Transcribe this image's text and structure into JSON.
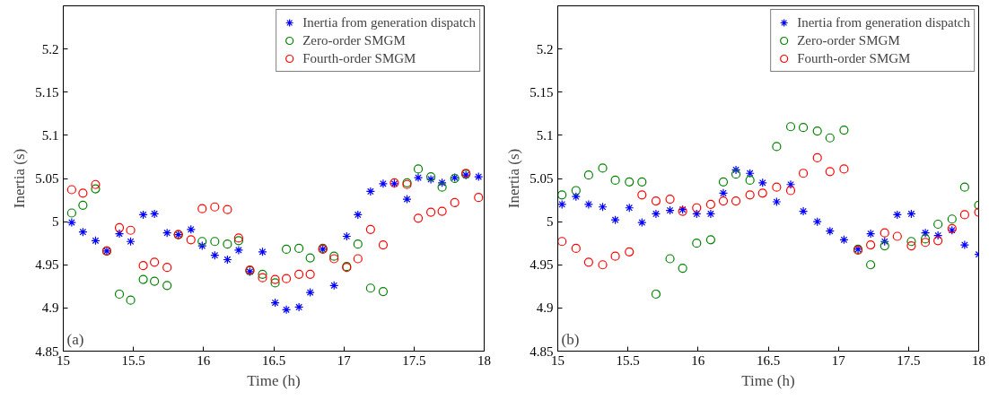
{
  "chart_data": [
    {
      "type": "scatter",
      "xlabel": "Time (h)",
      "ylabel": "Inertia (s)",
      "annotations": [
        "(a)"
      ],
      "xlim": [
        15,
        18
      ],
      "ylim": [
        4.85,
        5.25
      ],
      "xticks": [
        15,
        15.5,
        16,
        16.5,
        17,
        17.5,
        18
      ],
      "yticks": [
        4.85,
        4.9,
        4.95,
        5,
        5.05,
        5.1,
        5.15,
        5.2
      ],
      "grid": false,
      "legend": "top right",
      "x": [
        15.06,
        15.14,
        15.23,
        15.31,
        15.4,
        15.48,
        15.57,
        15.65,
        15.74,
        15.82,
        15.91,
        15.99,
        16.08,
        16.17,
        16.25,
        16.33,
        16.42,
        16.51,
        16.59,
        16.68,
        16.76,
        16.85,
        16.93,
        17.02,
        17.1,
        17.19,
        17.28,
        17.36,
        17.45,
        17.53,
        17.62,
        17.7,
        17.79,
        17.87,
        17.96
      ],
      "series": [
        {
          "name": "Inertia from generation dispatch",
          "color": "#0000ff",
          "marker": "cross",
          "values": [
            4.999,
            4.988,
            4.978,
            4.966,
            4.986,
            4.977,
            5.008,
            5.009,
            4.987,
            4.985,
            4.991,
            4.972,
            4.961,
            4.956,
            4.967,
            4.942,
            4.965,
            4.906,
            4.898,
            4.901,
            4.918,
            4.968,
            4.926,
            4.983,
            5.008,
            5.035,
            5.044,
            5.044,
            5.026,
            5.051,
            5.049,
            5.045,
            5.051,
            5.054,
            5.052
          ]
        },
        {
          "name": "Zero-order SMGM",
          "color": "#008000",
          "marker": "circle",
          "values": [
            5.01,
            5.019,
            5.038,
            4.966,
            4.916,
            4.909,
            4.933,
            4.931,
            4.926,
            4.985,
            null,
            4.977,
            4.977,
            4.974,
            4.978,
            4.943,
            4.939,
            4.929,
            4.968,
            4.969,
            4.958,
            4.969,
            4.96,
            4.948,
            4.974,
            4.923,
            4.919,
            null,
            5.045,
            5.061,
            5.052,
            5.04,
            5.05,
            5.055,
            null
          ]
        },
        {
          "name": "Fourth-order SMGM",
          "color": "#ff0000",
          "marker": "circle",
          "values": [
            5.037,
            5.033,
            5.043,
            4.966,
            4.993,
            4.99,
            4.949,
            4.953,
            4.947,
            4.985,
            4.979,
            5.015,
            5.017,
            5.014,
            4.981,
            4.944,
            4.935,
            4.933,
            4.934,
            4.939,
            4.939,
            4.968,
            4.957,
            4.947,
            4.957,
            4.991,
            4.973,
            5.045,
            5.043,
            5.004,
            5.011,
            5.012,
            5.022,
            5.056,
            5.028
          ]
        }
      ]
    },
    {
      "type": "scatter",
      "xlabel": "Time (h)",
      "ylabel": "Inertia (s)",
      "annotations": [
        "(b)"
      ],
      "xlim": [
        15,
        18
      ],
      "ylim": [
        4.85,
        5.25
      ],
      "xticks": [
        15,
        15.5,
        16,
        16.5,
        17,
        17.5,
        18
      ],
      "yticks": [
        4.85,
        4.9,
        4.95,
        5,
        5.05,
        5.1,
        5.15,
        5.2
      ],
      "grid": false,
      "legend": "top right",
      "x": [
        15.03,
        15.13,
        15.22,
        15.32,
        15.41,
        15.51,
        15.6,
        15.7,
        15.8,
        15.89,
        15.99,
        16.09,
        16.18,
        16.27,
        16.37,
        16.46,
        16.56,
        16.66,
        16.75,
        16.85,
        16.94,
        17.04,
        17.14,
        17.23,
        17.33,
        17.42,
        17.52,
        17.62,
        17.71,
        17.81,
        17.9,
        18.0
      ],
      "series": [
        {
          "name": "Inertia from generation dispatch",
          "color": "#0000ff",
          "marker": "cross",
          "values": [
            5.02,
            5.029,
            5.02,
            5.017,
            5.002,
            5.016,
            4.999,
            5.009,
            5.013,
            5.014,
            5.009,
            5.009,
            5.033,
            5.06,
            5.056,
            5.045,
            5.023,
            5.043,
            5.012,
            5.0,
            4.989,
            4.979,
            4.968,
            4.986,
            4.977,
            5.008,
            5.009,
            4.987,
            4.984,
            4.99,
            4.973,
            4.962
          ]
        },
        {
          "name": "Zero-order SMGM",
          "color": "#008000",
          "marker": "circle",
          "values": [
            5.031,
            5.036,
            5.054,
            5.062,
            5.048,
            5.046,
            5.046,
            4.916,
            4.957,
            4.946,
            4.975,
            4.979,
            5.046,
            5.055,
            5.048,
            null,
            5.087,
            5.11,
            5.109,
            5.105,
            5.097,
            5.106,
            4.968,
            4.95,
            4.972,
            null,
            4.977,
            4.98,
            4.997,
            5.003,
            5.04,
            5.019
          ]
        },
        {
          "name": "Fourth-order SMGM",
          "color": "#ff0000",
          "marker": "circle",
          "values": [
            4.977,
            4.969,
            4.953,
            4.95,
            4.96,
            4.965,
            5.031,
            5.024,
            5.026,
            5.012,
            5.016,
            5.02,
            5.024,
            5.024,
            5.031,
            5.033,
            5.04,
            5.036,
            5.056,
            5.074,
            5.058,
            5.061,
            4.967,
            4.973,
            4.987,
            4.983,
            4.972,
            4.976,
            4.978,
            4.992,
            5.008,
            5.011
          ]
        }
      ]
    }
  ]
}
